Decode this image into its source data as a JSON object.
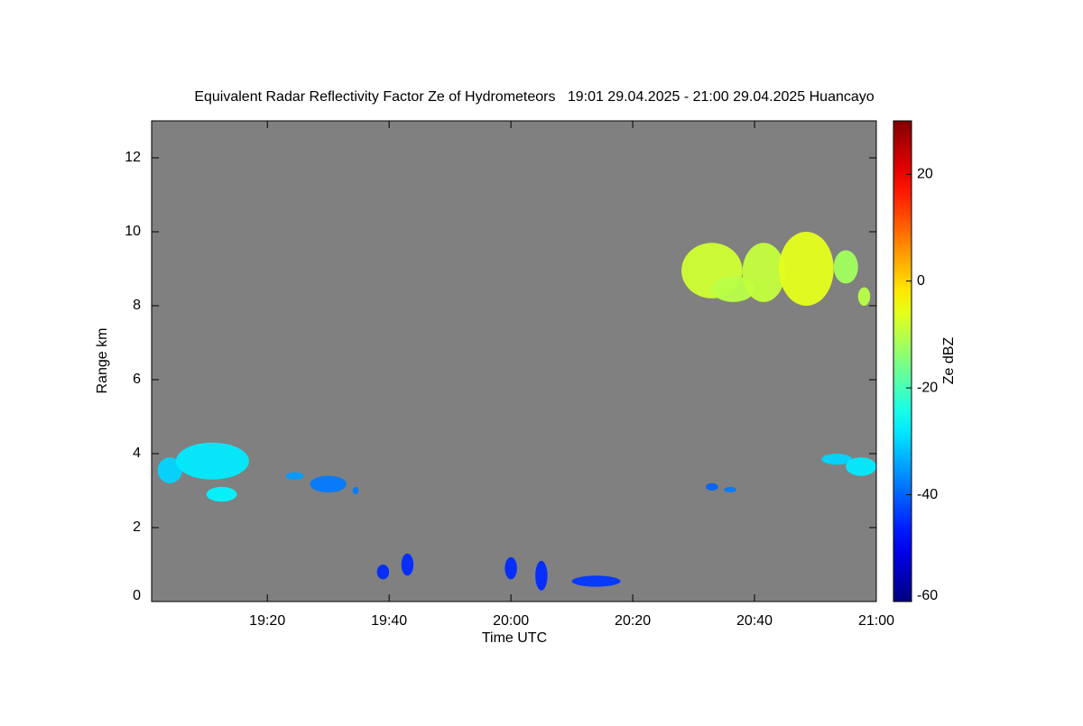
{
  "chart_data": {
    "type": "heatmap",
    "title": "Equivalent Radar Reflectivity Factor Ze of Hydrometeors   19:01 29.04.2025 - 21:00 29.04.2025 Huancayo",
    "x_label": "Time UTC",
    "y_label": "Range km",
    "colorbar_label": "Ze dBZ",
    "background": "#808080",
    "xlim": [
      "19:01",
      "21:00"
    ],
    "xticks": [
      "19:20",
      "19:40",
      "20:00",
      "20:20",
      "20:40",
      "21:00"
    ],
    "ylim": [
      0,
      13
    ],
    "yticks": [
      0,
      2,
      4,
      6,
      8,
      10,
      12
    ],
    "zlim": [
      -60,
      30
    ],
    "zticks": [
      -60,
      -40,
      -20,
      0,
      20
    ],
    "cells": [
      {
        "x": [
          "19:02",
          "19:06"
        ],
        "y": [
          3.2,
          3.9
        ],
        "value": -30
      },
      {
        "x": [
          "19:05",
          "19:17"
        ],
        "y": [
          3.3,
          4.3
        ],
        "value": -28
      },
      {
        "x": [
          "19:10",
          "19:15"
        ],
        "y": [
          2.7,
          3.1
        ],
        "value": -27
      },
      {
        "x": [
          "19:23",
          "19:26"
        ],
        "y": [
          3.3,
          3.5
        ],
        "value": -35
      },
      {
        "x": [
          "19:27",
          "19:33"
        ],
        "y": [
          2.95,
          3.4
        ],
        "value": -38
      },
      {
        "x": [
          "19:34",
          "19:35"
        ],
        "y": [
          2.9,
          3.1
        ],
        "value": -38
      },
      {
        "x": [
          "20:32",
          "20:34"
        ],
        "y": [
          3.0,
          3.2
        ],
        "value": -40
      },
      {
        "x": [
          "20:35",
          "20:37"
        ],
        "y": [
          2.95,
          3.1
        ],
        "value": -38
      },
      {
        "x": [
          "20:51",
          "20:56"
        ],
        "y": [
          3.7,
          4.0
        ],
        "value": -30
      },
      {
        "x": [
          "20:55",
          "21:00"
        ],
        "y": [
          3.4,
          3.9
        ],
        "value": -28
      },
      {
        "x": [
          "20:28",
          "20:38"
        ],
        "y": [
          8.2,
          9.7
        ],
        "value": -8
      },
      {
        "x": [
          "20:33",
          "20:40"
        ],
        "y": [
          8.1,
          8.8
        ],
        "value": -10
      },
      {
        "x": [
          "20:38",
          "20:45"
        ],
        "y": [
          8.1,
          9.7
        ],
        "value": -9
      },
      {
        "x": [
          "20:44",
          "20:53"
        ],
        "y": [
          8.0,
          10.0
        ],
        "value": -6
      },
      {
        "x": [
          "20:53",
          "20:57"
        ],
        "y": [
          8.6,
          9.5
        ],
        "value": -12
      },
      {
        "x": [
          "20:57",
          "20:59"
        ],
        "y": [
          8.0,
          8.5
        ],
        "value": -10
      },
      {
        "x": [
          "19:38",
          "19:40"
        ],
        "y": [
          0.6,
          1.0
        ],
        "value": -45
      },
      {
        "x": [
          "19:42",
          "19:44"
        ],
        "y": [
          0.7,
          1.3
        ],
        "value": -45
      },
      {
        "x": [
          "19:59",
          "20:01"
        ],
        "y": [
          0.6,
          1.2
        ],
        "value": -45
      },
      {
        "x": [
          "20:04",
          "20:06"
        ],
        "y": [
          0.3,
          1.1
        ],
        "value": -45
      },
      {
        "x": [
          "20:10",
          "20:18"
        ],
        "y": [
          0.4,
          0.7
        ],
        "value": -44
      }
    ]
  }
}
